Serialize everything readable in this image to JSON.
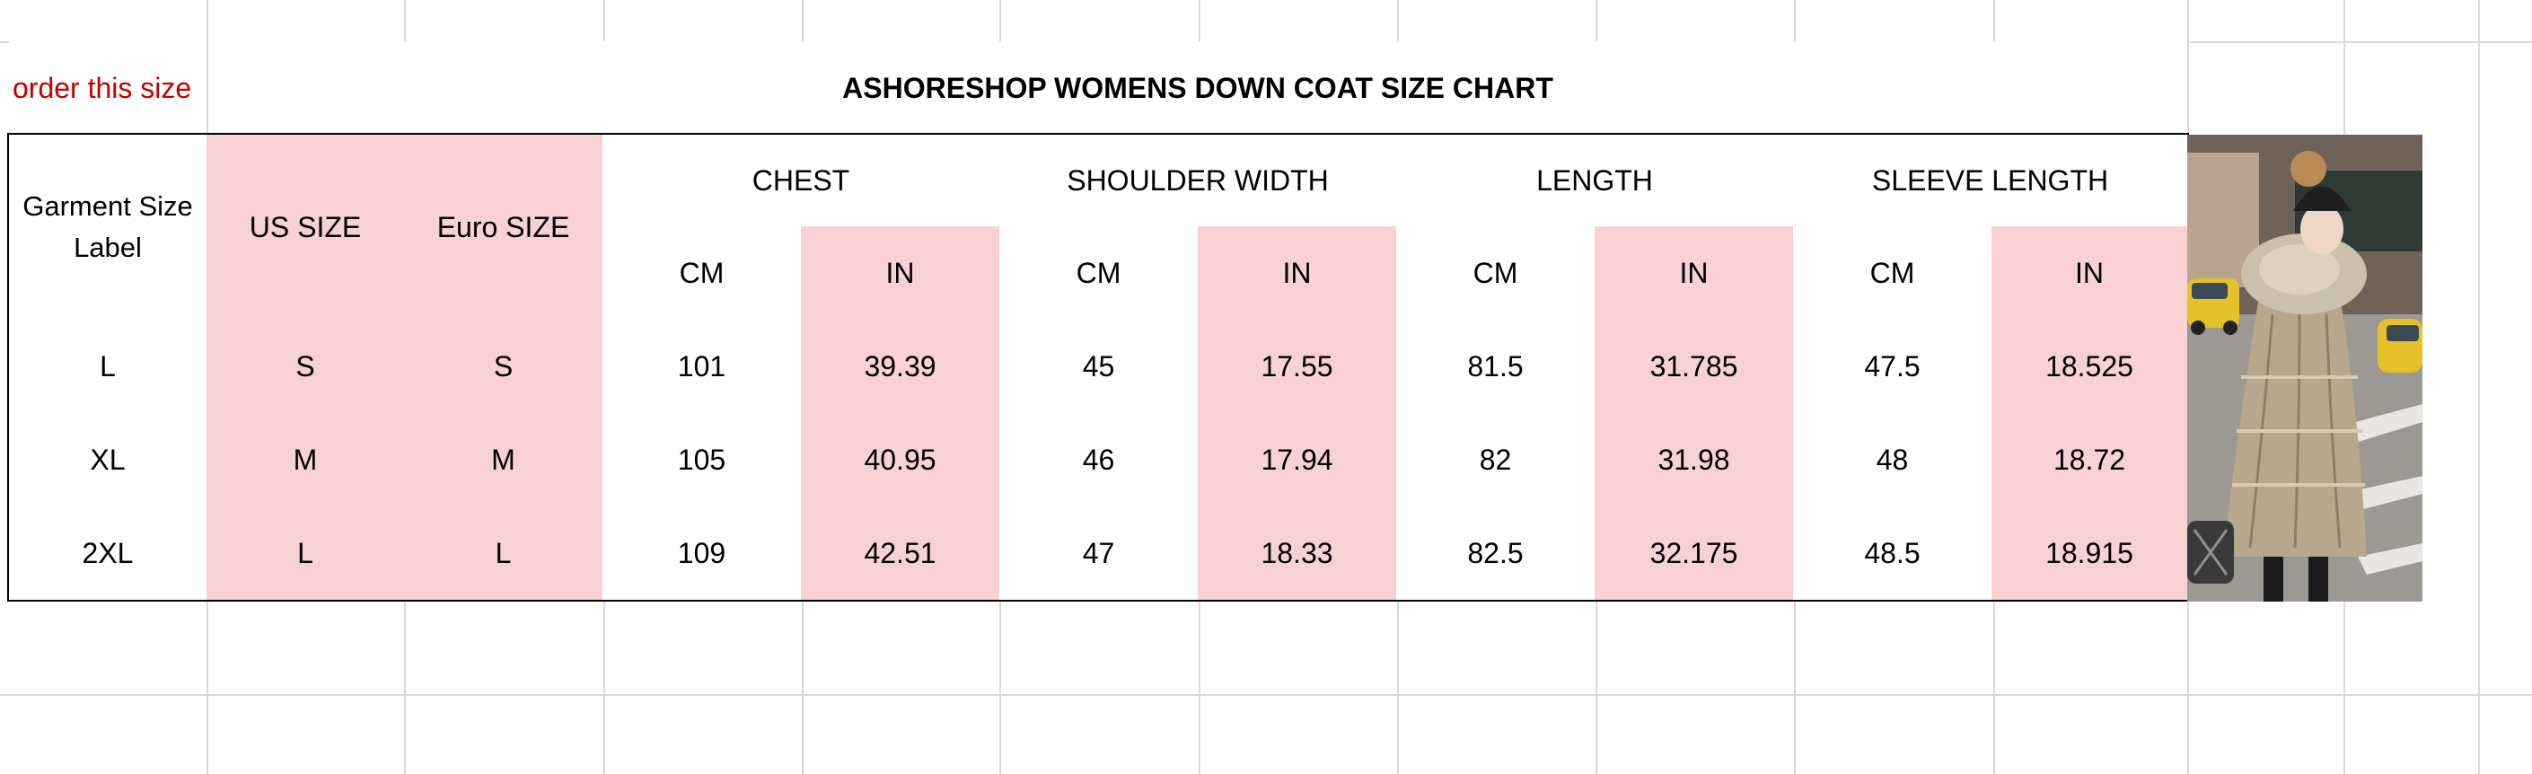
{
  "note": "order this size",
  "title": "ASHORESHOP WOMENS DOWN COAT SIZE CHART",
  "headers": {
    "garment_size": "Garment Size Label",
    "us_size": "US SIZE",
    "euro_size": "Euro SIZE",
    "chest": "CHEST",
    "shoulder": "SHOULDER WIDTH",
    "length": "LENGTH",
    "sleeve": "SLEEVE LENGTH",
    "cm": "CM",
    "in": "IN"
  },
  "rows": [
    {
      "label": "L",
      "us": "S",
      "euro": "S",
      "chest_cm": "101",
      "chest_in": "39.39",
      "shoulder_cm": "45",
      "shoulder_in": "17.55",
      "length_cm": "81.5",
      "length_in": "31.785",
      "sleeve_cm": "47.5",
      "sleeve_in": "18.525"
    },
    {
      "label": "XL",
      "us": "M",
      "euro": "M",
      "chest_cm": "105",
      "chest_in": "40.95",
      "shoulder_cm": "46",
      "shoulder_in": "17.94",
      "length_cm": "82",
      "length_in": "31.98",
      "sleeve_cm": "48",
      "sleeve_in": "18.72"
    },
    {
      "label": "2XL",
      "us": "L",
      "euro": "L",
      "chest_cm": "109",
      "chest_in": "42.51",
      "shoulder_cm": "47",
      "shoulder_in": "18.33",
      "length_cm": "82.5",
      "length_in": "32.175",
      "sleeve_cm": "48.5",
      "sleeve_in": "18.915"
    }
  ],
  "colors": {
    "highlight": "#f8d2d2",
    "note_text": "#c40000",
    "gridline": "#d9d9d9"
  }
}
